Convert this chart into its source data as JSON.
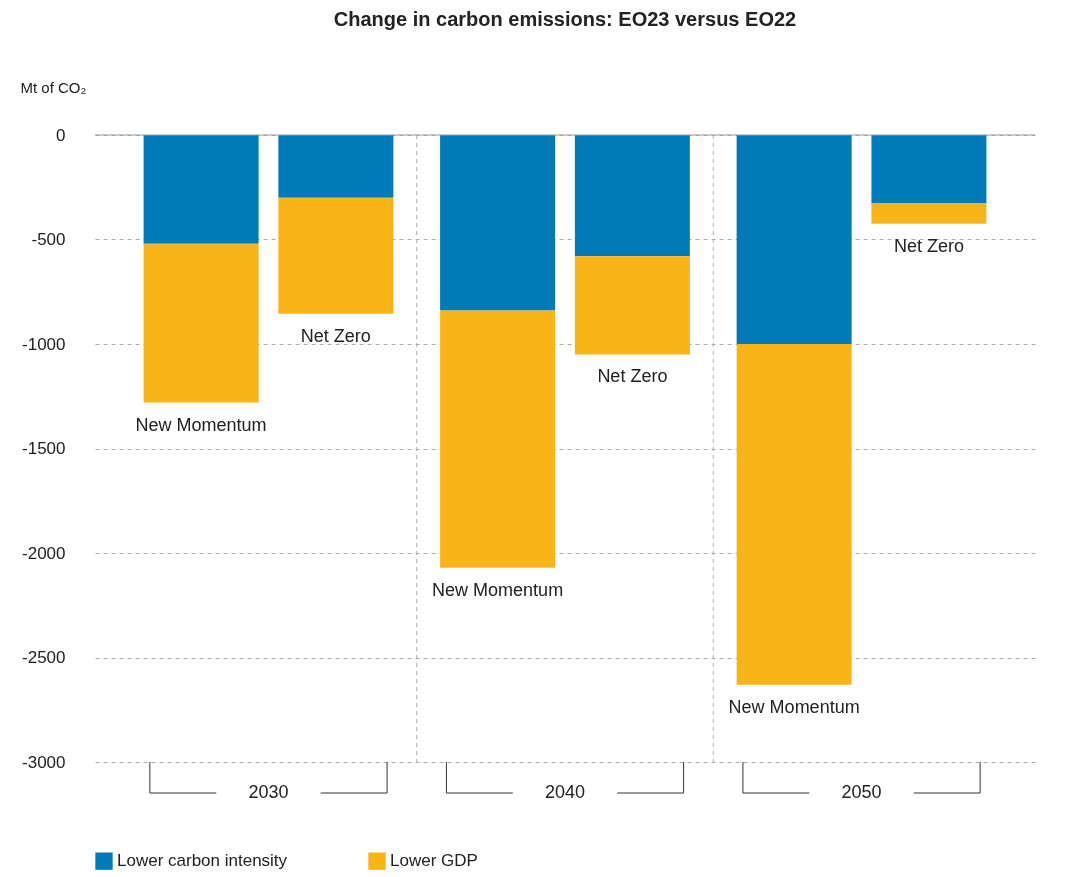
{
  "chart_data": {
    "type": "bar",
    "title": "Change in carbon emissions: EO23 versus EO22",
    "ylabel": "Mt of CO₂",
    "categories": [
      "New Momentum",
      "Net Zero",
      "New Momentum",
      "Net Zero",
      "New Momentum",
      "Net Zero"
    ],
    "annotations": [
      "2030",
      "2040",
      "2050"
    ],
    "series": [
      {
        "name": "Lower carbon intensity",
        "color": "#007bb8",
        "values": [
          -520,
          -300,
          -840,
          -580,
          -1000,
          -325
        ]
      },
      {
        "name": "Lower GDP",
        "color": "#f9b418",
        "values": [
          -760,
          -555,
          -1230,
          -470,
          -1630,
          -100
        ]
      }
    ],
    "stacked": true,
    "ylim": [
      -3000,
      0
    ],
    "yticks": [
      0,
      -500,
      -1000,
      -1500,
      -2000,
      -2500,
      -3000
    ],
    "grid": "y",
    "legend": "bottom",
    "tick_labels": "y"
  }
}
